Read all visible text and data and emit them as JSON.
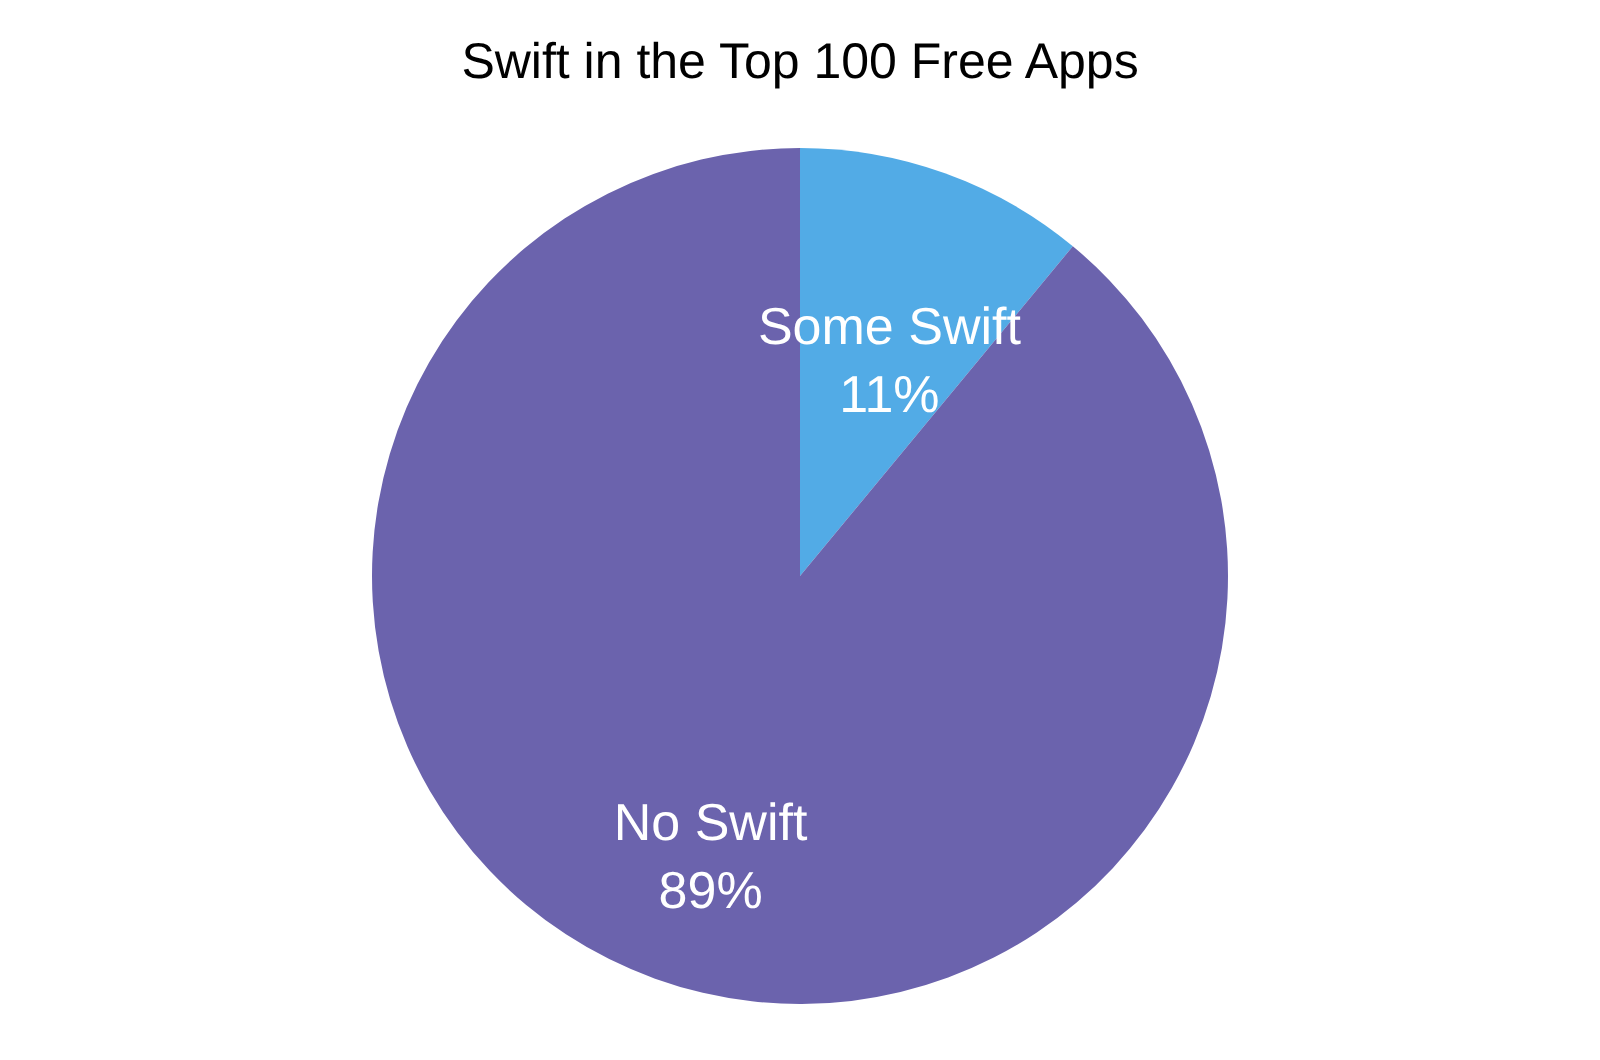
{
  "chart_data": {
    "type": "pie",
    "title": "Swift in the Top 100 Free Apps",
    "categories": [
      "Some Swift",
      "No Swift"
    ],
    "values": [
      11,
      89
    ],
    "value_labels": [
      "11%",
      "89%"
    ],
    "colors": [
      "#52abe6",
      "#6b63ad"
    ],
    "legend": false
  }
}
